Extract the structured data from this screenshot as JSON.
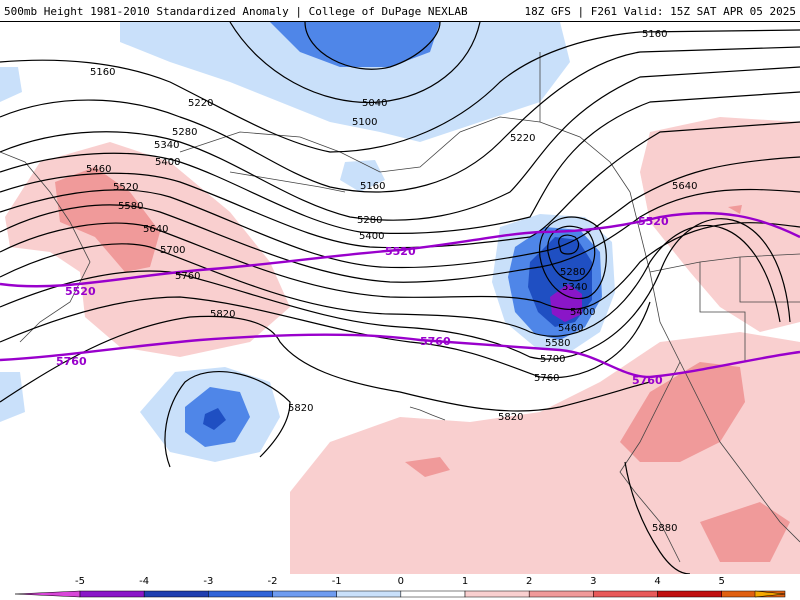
{
  "header": {
    "title_left": "500mb Height 1981-2010 Standardized Anomaly | College of DuPage NEXLAB",
    "title_right": "18Z GFS | F261 Valid: 15Z SAT APR 05 2025"
  },
  "colors": {
    "contour": "#000000",
    "highlight_contour": "#9900cc",
    "coast": "#444444",
    "fill_neg_1": "#c9e0fa",
    "fill_neg_2": "#4f86e8",
    "fill_neg_3": "#1f4fc2",
    "fill_neg_4": "#8a16c8",
    "fill_pos_1": "#f9cfcf",
    "fill_pos_2": "#f09a9a",
    "fill_pos_3": "#e85a5a"
  },
  "contour_labels": [
    "5160",
    "5040",
    "5100",
    "5160",
    "5220",
    "5220",
    "5280",
    "5340",
    "5400",
    "5460",
    "5520",
    "5580",
    "5640",
    "5700",
    "5760",
    "5820",
    "5160",
    "5280",
    "5400",
    "5280",
    "5340",
    "5400",
    "5460",
    "5580",
    "5700",
    "5760",
    "5820",
    "5820",
    "5640",
    "5880"
  ],
  "highlight_labels": [
    "5520",
    "5520",
    "5520",
    "5760",
    "5760",
    "5760"
  ],
  "colorbar": {
    "ticks": [
      "-5",
      "-4",
      "-3",
      "-2",
      "-1",
      "0",
      "1",
      "2",
      "3",
      "4",
      "5"
    ],
    "colors": [
      "#d946d9",
      "#8a16c8",
      "#1f3fb0",
      "#2f63d8",
      "#6f9cf0",
      "#c9e0fa",
      "#ffffff",
      "#f9cfcf",
      "#f09a9a",
      "#e85a5a",
      "#c01010",
      "#e06010",
      "#f5a800"
    ]
  }
}
